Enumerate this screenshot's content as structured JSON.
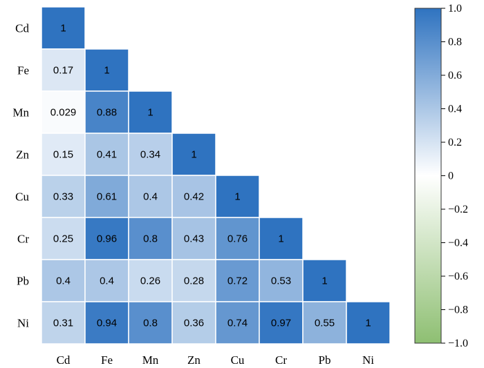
{
  "chart_data": {
    "type": "heatmap",
    "title": "",
    "variables": [
      "Cd",
      "Fe",
      "Mn",
      "Zn",
      "Cu",
      "Cr",
      "Pb",
      "Ni"
    ],
    "matrix": [
      [
        1
      ],
      [
        0.17,
        1
      ],
      [
        0.029,
        0.88,
        1
      ],
      [
        0.15,
        0.41,
        0.34,
        1
      ],
      [
        0.33,
        0.61,
        0.4,
        0.42,
        1
      ],
      [
        0.25,
        0.96,
        0.8,
        0.43,
        0.76,
        1
      ],
      [
        0.4,
        0.4,
        0.26,
        0.28,
        0.72,
        0.53,
        1
      ],
      [
        0.31,
        0.94,
        0.8,
        0.36,
        0.74,
        0.97,
        0.55,
        1
      ]
    ],
    "labels": [
      [
        "1"
      ],
      [
        "0.17",
        "1"
      ],
      [
        "0.029",
        "0.88",
        "1"
      ],
      [
        "0.15",
        "0.41",
        "0.34",
        "1"
      ],
      [
        "0.33",
        "0.61",
        "0.4",
        "0.42",
        "1"
      ],
      [
        "0.25",
        "0.96",
        "0.8",
        "0.43",
        "0.76",
        "1"
      ],
      [
        "0.4",
        "0.4",
        "0.26",
        "0.28",
        "0.72",
        "0.53",
        "1"
      ],
      [
        "0.31",
        "0.94",
        "0.8",
        "0.36",
        "0.74",
        "0.97",
        "0.55",
        "1"
      ]
    ],
    "layout": "lower-triangle",
    "colorbar": {
      "range": [
        -1,
        1
      ],
      "ticks": [
        1,
        0.8,
        0.6,
        0.4,
        0.2,
        0,
        -0.2,
        -0.4,
        -0.6,
        -0.8,
        -1
      ],
      "tick_labels": [
        "1.0",
        "0.8",
        "0.6",
        "0.4",
        "0.2",
        "0",
        "−0.2",
        "−0.4",
        "−0.6",
        "−0.8",
        "−1.0"
      ],
      "placement": "right"
    },
    "colors": {
      "positive": "#2f73c0",
      "neutral": "#ffffff",
      "negative": "#8ebf72",
      "grid": "#ffffff"
    }
  }
}
